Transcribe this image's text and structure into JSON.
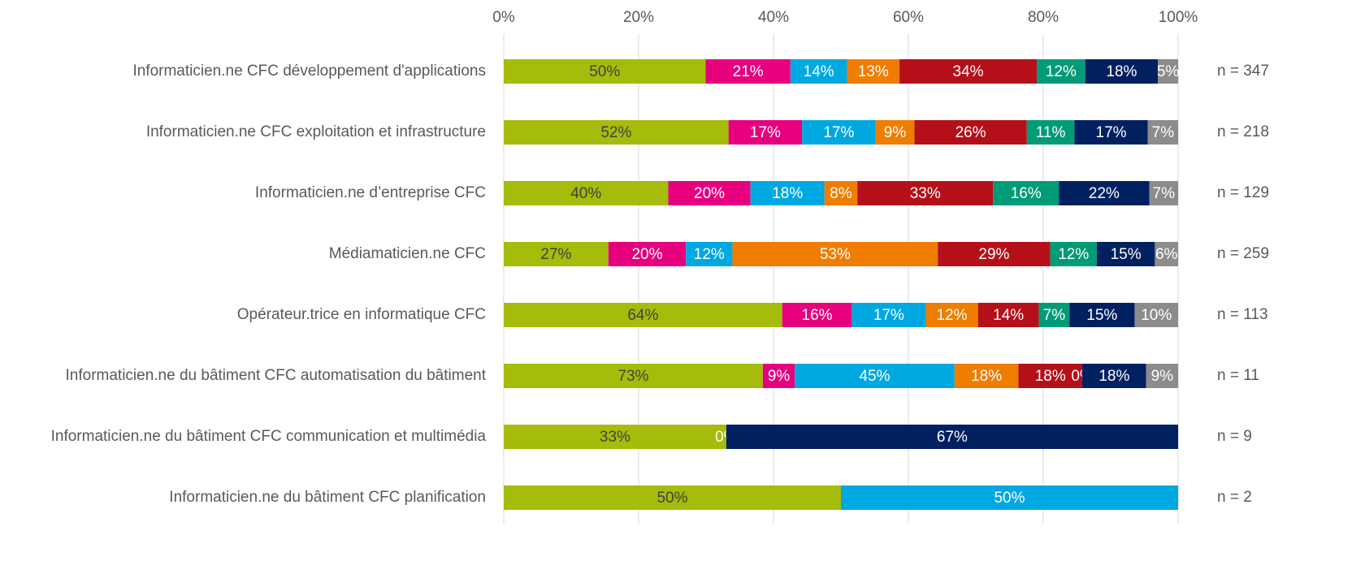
{
  "chart_data": {
    "type": "bar",
    "orientation": "horizontal",
    "stacking": "percent",
    "categories": [
      "Informaticien.ne CFC développement d'applications",
      "Informaticien.ne CFC exploitation et infrastructure",
      "Informaticien.ne d’entreprise CFC",
      "Médiamaticien.ne CFC",
      "Opérateur.trice en informatique CFC",
      "Informaticien.ne du bâtiment CFC automatisation du bâtiment",
      "Informaticien.ne du bâtiment CFC communication et multimédia",
      "Informaticien.ne du bâtiment CFC planification"
    ],
    "row_labels": [
      "n = 347",
      "n = 218",
      "n = 129",
      "n = 259",
      "n = 113",
      "n = 11",
      "n = 9",
      "n = 2"
    ],
    "series": [
      {
        "color": "#a5bc0a",
        "label_color": "#404040",
        "values": [
          50,
          52,
          40,
          27,
          64,
          73,
          33,
          50
        ],
        "value_labels": [
          "50%",
          "52%",
          "40%",
          "27%",
          "64%",
          "73%",
          "33%",
          "50%"
        ]
      },
      {
        "color": "#e6007e",
        "label_color": "#ffffff",
        "values": [
          21,
          17,
          20,
          20,
          16,
          9,
          0,
          null
        ],
        "value_labels": [
          "21%",
          "17%",
          "20%",
          "20%",
          "16%",
          "9%",
          "0%",
          null
        ]
      },
      {
        "color": "#00a8e1",
        "label_color": "#ffffff",
        "values": [
          14,
          17,
          18,
          12,
          17,
          45,
          null,
          50
        ],
        "value_labels": [
          "14%",
          "17%",
          "18%",
          "12%",
          "17%",
          "45%",
          null,
          "50%"
        ]
      },
      {
        "color": "#ef7d00",
        "label_color": "#ffffff",
        "values": [
          13,
          9,
          8,
          53,
          12,
          18,
          null,
          null
        ],
        "value_labels": [
          "13%",
          "9%",
          "8%",
          "53%",
          "12%",
          "18%",
          null,
          null
        ]
      },
      {
        "color": "#b51019",
        "label_color": "#ffffff",
        "values": [
          34,
          26,
          33,
          29,
          14,
          18,
          null,
          null
        ],
        "value_labels": [
          "34%",
          "26%",
          "33%",
          "29%",
          "14%",
          "18%",
          null,
          null
        ]
      },
      {
        "color": "#009b77",
        "label_color": "#ffffff",
        "values": [
          12,
          11,
          16,
          12,
          7,
          0,
          null,
          null
        ],
        "value_labels": [
          "12%",
          "11%",
          "16%",
          "12%",
          "7%",
          "0%",
          null,
          null
        ]
      },
      {
        "color": "#002060",
        "label_color": "#ffffff",
        "values": [
          18,
          17,
          22,
          15,
          15,
          18,
          67,
          null
        ],
        "value_labels": [
          "18%",
          "17%",
          "22%",
          "15%",
          "15%",
          "18%",
          "67%",
          null
        ]
      },
      {
        "color": "#8c8c8c",
        "label_color": "#ffffff",
        "values": [
          5,
          7,
          7,
          6,
          10,
          9,
          null,
          null
        ],
        "value_labels": [
          "5%",
          "7%",
          "7%",
          "6%",
          "10%",
          "9%",
          null,
          null
        ]
      }
    ],
    "xlim": [
      0,
      100
    ],
    "xticks": [
      {
        "value": 0,
        "label": "0%"
      },
      {
        "value": 20,
        "label": "20%"
      },
      {
        "value": 40,
        "label": "40%"
      },
      {
        "value": 60,
        "label": "60%"
      },
      {
        "value": 80,
        "label": "80%"
      },
      {
        "value": 100,
        "label": "100%"
      }
    ],
    "grid": true
  }
}
